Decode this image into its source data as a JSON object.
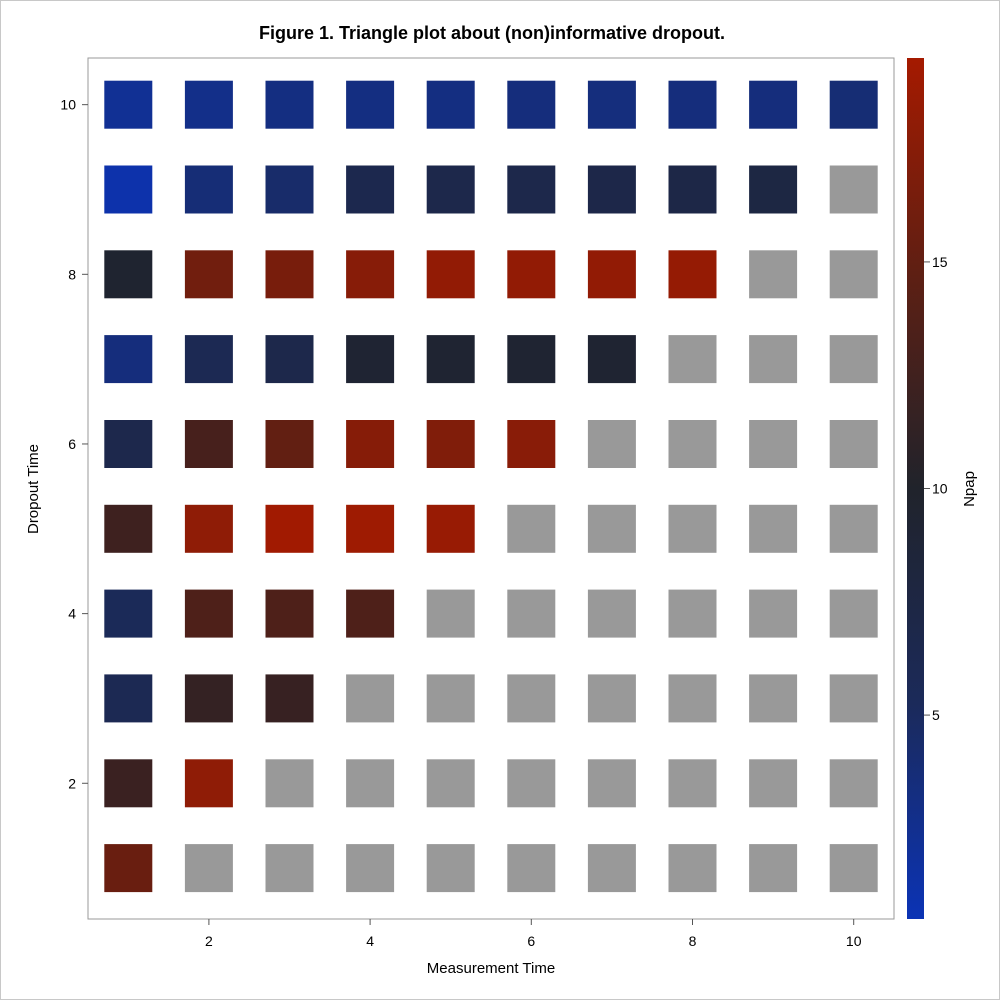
{
  "chart_data": {
    "type": "heatmap",
    "title": "Figure 1. Triangle plot about (non)informative dropout.",
    "xlabel": "Measurement Time",
    "ylabel": "Dropout Time",
    "xlim": [
      0.5,
      10.5
    ],
    "ylim": [
      0.4,
      10.55
    ],
    "x_ticks": [
      2,
      4,
      6,
      8,
      10
    ],
    "y_ticks": [
      2,
      4,
      6,
      8,
      10
    ],
    "colorbar": {
      "label": "Npap",
      "range": [
        0.5,
        19.5
      ],
      "ticks": [
        5,
        10,
        15
      ],
      "colors": [
        "#0b33b5",
        "#1b2a5a",
        "#20232b",
        "#5e1f13",
        "#a51a00"
      ],
      "missing_color": "#999999"
    },
    "cells": [
      {
        "dropout": 10,
        "values": [
          2.2,
          2.8,
          3.2,
          3.2,
          3.2,
          3.5,
          3.4,
          3.5,
          3.5,
          3.9
        ]
      },
      {
        "dropout": 9,
        "values": [
          1.0,
          3.8,
          4.4,
          6.5,
          6.8,
          6.8,
          7.0,
          7.2,
          7.6,
          null
        ]
      },
      {
        "dropout": 8,
        "values": [
          9.5,
          16.0,
          16.5,
          17.5,
          18.2,
          18.2,
          18.2,
          18.4,
          null,
          null
        ]
      },
      {
        "dropout": 7,
        "values": [
          3.5,
          6.0,
          6.8,
          9.2,
          9.3,
          9.3,
          9.3,
          null,
          null,
          null
        ]
      },
      {
        "dropout": 6,
        "values": [
          6.7,
          13.0,
          15.0,
          17.4,
          17.0,
          17.6,
          null,
          null,
          null,
          null
        ]
      },
      {
        "dropout": 5,
        "values": [
          12.3,
          18.0,
          19.2,
          19.0,
          18.6,
          null,
          null,
          null,
          null,
          null
        ]
      },
      {
        "dropout": 4,
        "values": [
          5.5,
          13.5,
          13.5,
          13.5,
          null,
          null,
          null,
          null,
          null,
          null
        ]
      },
      {
        "dropout": 3,
        "values": [
          6.0,
          11.5,
          11.8,
          null,
          null,
          null,
          null,
          null,
          null,
          null
        ]
      },
      {
        "dropout": 2,
        "values": [
          12.0,
          18.0,
          null,
          null,
          null,
          null,
          null,
          null,
          null,
          null
        ]
      },
      {
        "dropout": 1,
        "values": [
          15.5,
          null,
          null,
          null,
          null,
          null,
          null,
          null,
          null,
          null
        ]
      }
    ]
  }
}
